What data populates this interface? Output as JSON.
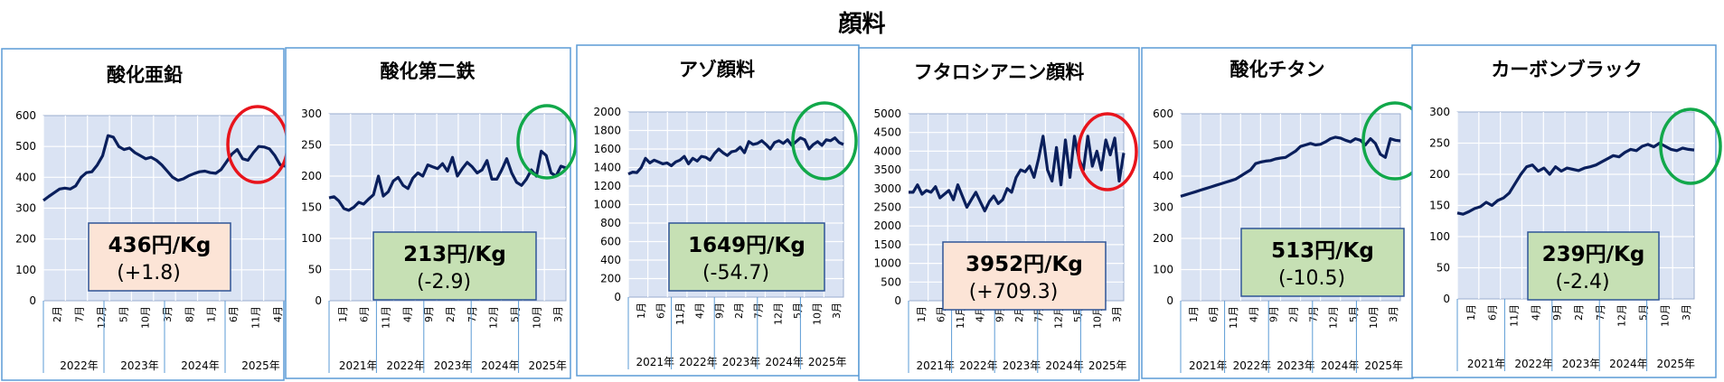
{
  "page": {
    "title": "顔料"
  },
  "colors": {
    "line": "#0a1f5c",
    "plot_bg": "#dae3f3",
    "frame": "#5b9bd5",
    "down_box": "#c6e0b4",
    "up_box": "#fce4d6",
    "box_border": "#2f5597",
    "circle_red": "#e8141c",
    "circle_green": "#11a84a"
  },
  "chart_data": [
    {
      "type": "line",
      "title": "酸化亜鉛",
      "ylim": [
        0,
        600
      ],
      "yticks": [
        "0",
        "100",
        "200",
        "300",
        "400",
        "500",
        "600"
      ],
      "xticks": [
        "2月",
        "7月",
        "12月",
        "5月",
        "10月",
        "3月",
        "8月",
        "1月",
        "6月",
        "11月",
        "4月"
      ],
      "years": [
        "2022年",
        "2023年",
        "2024年",
        "2025年"
      ],
      "values": [
        325,
        338,
        350,
        362,
        365,
        362,
        372,
        400,
        415,
        418,
        440,
        470,
        535,
        530,
        500,
        490,
        495,
        480,
        470,
        460,
        465,
        455,
        440,
        420,
        400,
        390,
        395,
        405,
        412,
        418,
        420,
        415,
        413,
        425,
        450,
        475,
        490,
        460,
        455,
        480,
        500,
        498,
        492,
        470,
        440,
        436
      ],
      "price": "436円/Kg",
      "change": "(+1.8)",
      "trend": "up",
      "marker_color": "red"
    },
    {
      "type": "line",
      "title": "酸化第二鉄",
      "ylim": [
        0,
        300
      ],
      "yticks": [
        "0",
        "50",
        "100",
        "150",
        "200",
        "250",
        "300"
      ],
      "xticks": [
        "1月",
        "6月",
        "11月",
        "4月",
        "9月",
        "2月",
        "7月",
        "12月",
        "5月",
        "10月",
        "3月"
      ],
      "years": [
        "2021年",
        "2022年",
        "2023年",
        "2024年",
        "2025年"
      ],
      "values": [
        165,
        167,
        160,
        148,
        145,
        150,
        158,
        155,
        163,
        170,
        200,
        168,
        175,
        192,
        198,
        185,
        180,
        197,
        205,
        200,
        218,
        215,
        212,
        220,
        208,
        230,
        200,
        212,
        222,
        215,
        205,
        210,
        225,
        195,
        195,
        210,
        228,
        205,
        190,
        185,
        195,
        210,
        200,
        240,
        233,
        205,
        200,
        216,
        213
      ],
      "price": "213円/Kg",
      "change": "(-2.9)",
      "trend": "down",
      "marker_color": "green"
    },
    {
      "type": "line",
      "title": "アゾ顔料",
      "ylim": [
        0,
        2000
      ],
      "yticks": [
        "0",
        "200",
        "400",
        "600",
        "800",
        "1000",
        "1200",
        "1400",
        "1600",
        "1800",
        "2000"
      ],
      "xticks": [
        "1月",
        "6月",
        "11月",
        "4月",
        "9月",
        "2月",
        "7月",
        "12月",
        "5月",
        "10月",
        "3月"
      ],
      "years": [
        "2021年",
        "2022年",
        "2023年",
        "2024年",
        "2025年"
      ],
      "values": [
        1330,
        1350,
        1345,
        1400,
        1500,
        1450,
        1480,
        1460,
        1440,
        1450,
        1420,
        1460,
        1480,
        1520,
        1440,
        1500,
        1470,
        1520,
        1510,
        1480,
        1550,
        1600,
        1560,
        1530,
        1570,
        1580,
        1620,
        1560,
        1680,
        1650,
        1660,
        1690,
        1650,
        1600,
        1670,
        1690,
        1660,
        1700,
        1640,
        1680,
        1720,
        1700,
        1600,
        1650,
        1680,
        1640,
        1700,
        1690,
        1720,
        1670,
        1649
      ],
      "price": "1649円/Kg",
      "change": "(-54.7)",
      "trend": "down",
      "marker_color": "green"
    },
    {
      "type": "line",
      "title": "フタロシアニン顔料",
      "ylim": [
        0,
        5000
      ],
      "yticks": [
        "0",
        "500",
        "1000",
        "1500",
        "2000",
        "2500",
        "3000",
        "3500",
        "4000",
        "4500",
        "5000"
      ],
      "xticks": [
        "1月",
        "6月",
        "11月",
        "4月",
        "9月",
        "2月",
        "7月",
        "12月",
        "5月",
        "10月",
        "3月"
      ],
      "years": [
        "2021年",
        "2022年",
        "2023年",
        "2024年",
        "2025年"
      ],
      "values": [
        2900,
        2900,
        3100,
        2850,
        2950,
        2900,
        3050,
        2750,
        2850,
        2950,
        2700,
        3100,
        2800,
        2500,
        2700,
        2900,
        2650,
        2400,
        2650,
        2800,
        2600,
        2700,
        3000,
        2900,
        3300,
        3500,
        3450,
        3600,
        3300,
        3800,
        4400,
        3500,
        3200,
        4100,
        3100,
        4300,
        3300,
        4400,
        3800,
        3500,
        4400,
        3600,
        4000,
        3500,
        4300,
        3900,
        4350,
        3200,
        3952
      ],
      "price": "3952円/Kg",
      "change": "(+709.3)",
      "trend": "up",
      "marker_color": "red"
    },
    {
      "type": "line",
      "title": "酸化チタン",
      "ylim": [
        0,
        600
      ],
      "yticks": [
        "0",
        "100",
        "200",
        "300",
        "400",
        "500",
        "600"
      ],
      "xticks": [
        "1月",
        "6月",
        "11月",
        "4月",
        "9月",
        "2月",
        "7月",
        "12月",
        "5月",
        "10月",
        "3月"
      ],
      "years": [
        "2021年",
        "2022年",
        "2023年",
        "2024年",
        "2025年"
      ],
      "values": [
        335,
        340,
        345,
        350,
        355,
        360,
        365,
        370,
        375,
        380,
        385,
        390,
        400,
        410,
        420,
        440,
        445,
        448,
        450,
        455,
        458,
        460,
        470,
        480,
        495,
        500,
        505,
        500,
        502,
        510,
        520,
        525,
        522,
        515,
        510,
        520,
        515,
        500,
        520,
        505,
        470,
        460,
        520,
        515,
        513
      ],
      "price": "513円/Kg",
      "change": "(-10.5)",
      "trend": "down",
      "marker_color": "green"
    },
    {
      "type": "line",
      "title": "カーボンブラック",
      "ylim": [
        0,
        300
      ],
      "yticks": [
        "0",
        "50",
        "100",
        "150",
        "200",
        "250",
        "300"
      ],
      "xticks": [
        "1月",
        "6月",
        "11月",
        "4月",
        "9月",
        "2月",
        "7月",
        "12月",
        "5月",
        "10月",
        "3月"
      ],
      "years": [
        "2021年",
        "2022年",
        "2023年",
        "2024年",
        "2025年"
      ],
      "values": [
        138,
        136,
        140,
        145,
        148,
        155,
        150,
        158,
        162,
        170,
        185,
        200,
        212,
        215,
        205,
        210,
        200,
        212,
        205,
        210,
        208,
        206,
        210,
        212,
        215,
        220,
        225,
        230,
        228,
        235,
        240,
        238,
        245,
        248,
        244,
        250,
        245,
        240,
        238,
        242,
        240,
        239
      ],
      "price": "239円/Kg",
      "change": "(-2.4)",
      "trend": "down",
      "marker_color": "green"
    }
  ]
}
